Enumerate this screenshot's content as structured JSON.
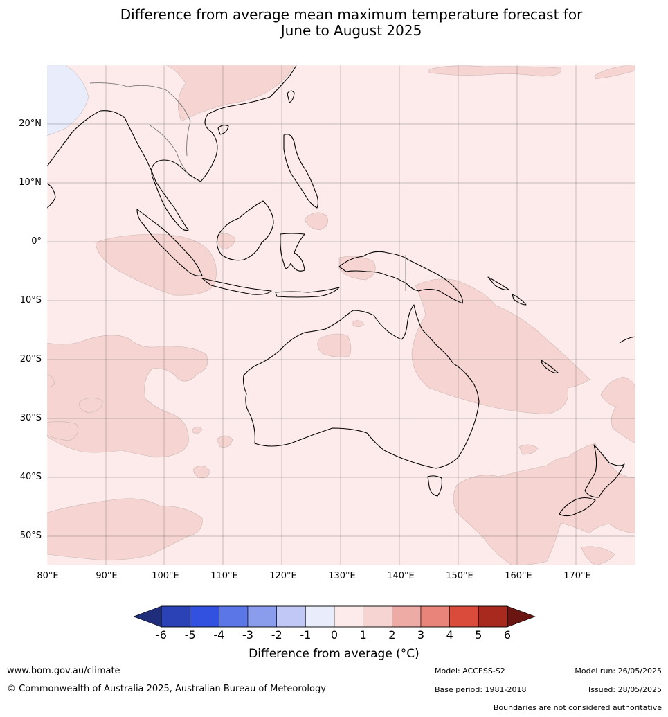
{
  "title_line1": "Difference from average mean maximum temperature forecast for",
  "title_line2": "June to August 2025",
  "lat_labels": [
    "20°N",
    "10°N",
    "0°",
    "10°S",
    "20°S",
    "30°S",
    "40°S",
    "50°S"
  ],
  "lon_labels": [
    "80°E",
    "90°E",
    "100°E",
    "110°E",
    "120°E",
    "130°E",
    "140°E",
    "150°E",
    "160°E",
    "170°E"
  ],
  "colorbar": {
    "ticks": [
      "-6",
      "-5",
      "-4",
      "-3",
      "-2",
      "-1",
      "0",
      "1",
      "2",
      "3",
      "4",
      "5",
      "6"
    ],
    "colors": [
      "#1f2d7a",
      "#2a42b5",
      "#3251e0",
      "#5b76e6",
      "#8a9ded",
      "#c1c8f5",
      "#e8ecfb",
      "#fcebea",
      "#f5d4d1",
      "#eeaba5",
      "#e8847a",
      "#db4b3c",
      "#a82a1e",
      "#6b1512"
    ],
    "title": "Difference from average (°C)"
  },
  "footer": {
    "url": "www.bom.gov.au/climate",
    "copyright": "© Commonwealth of Australia 2025, Australian Bureau of Meteorology",
    "model": "Model: ACCESS-S2",
    "base_period": "Base period: 1981-2018",
    "model_run": "Model run: 26/05/2025",
    "issued": "Issued: 28/05/2025",
    "boundaries": "Boundaries are not considered authoritative"
  }
}
